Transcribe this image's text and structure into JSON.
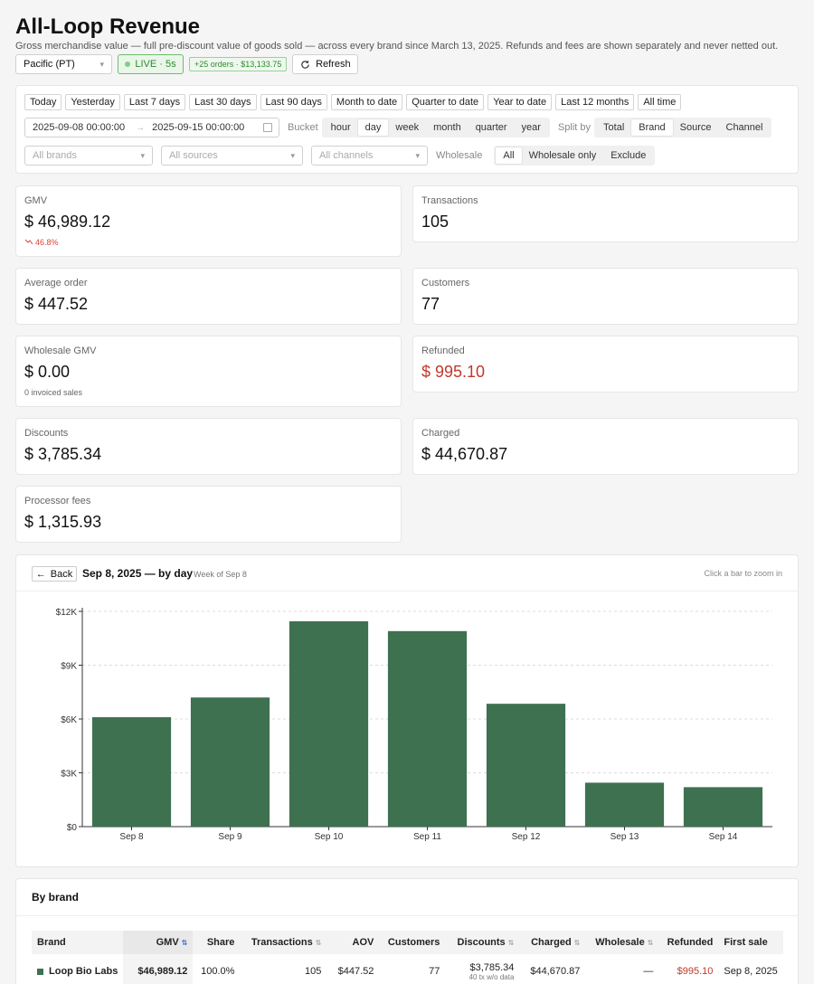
{
  "header": {
    "title": "All-Loop Revenue",
    "subtitle": "Gross merchandise value — full pre-discount value of goods sold — across every brand since March 13, 2025. Refunds and fees are shown separately and never netted out."
  },
  "topbar": {
    "timezone": "Pacific (PT)",
    "live_label": "LIVE · 5s",
    "new_orders": "+25 orders · $13,133.75",
    "refresh_label": "Refresh"
  },
  "filters": {
    "presets": [
      "Today",
      "Yesterday",
      "Last 7 days",
      "Last 30 days",
      "Last 90 days",
      "Month to date",
      "Quarter to date",
      "Year to date",
      "Last 12 months",
      "All time"
    ],
    "date_from": "2025-09-08 00:00:00",
    "date_to": "2025-09-15 00:00:00",
    "bucket_label": "Bucket",
    "buckets": [
      "hour",
      "day",
      "week",
      "month",
      "quarter",
      "year"
    ],
    "bucket_selected": "day",
    "split_label": "Split by",
    "splits": [
      "Total",
      "Brand",
      "Source",
      "Channel"
    ],
    "split_selected": "Brand",
    "brands_placeholder": "All brands",
    "sources_placeholder": "All sources",
    "channels_placeholder": "All channels",
    "wholesale_label": "Wholesale",
    "wholesale_options": [
      "All",
      "Wholesale only",
      "Exclude"
    ],
    "wholesale_selected": "All"
  },
  "kpis": {
    "gmv": {
      "label": "GMV",
      "value": "$ 46,989.12",
      "delta": "46.8%"
    },
    "transactions": {
      "label": "Transactions",
      "value": "105"
    },
    "avg_order": {
      "label": "Average order",
      "value": "$ 447.52"
    },
    "customers": {
      "label": "Customers",
      "value": "77"
    },
    "wholesale_gmv": {
      "label": "Wholesale GMV",
      "value": "$ 0.00",
      "sub": "0 invoiced sales"
    },
    "refunded": {
      "label": "Refunded",
      "value": "$ 995.10"
    },
    "discounts": {
      "label": "Discounts",
      "value": "$ 3,785.34"
    },
    "charged": {
      "label": "Charged",
      "value": "$ 44,670.87"
    },
    "processor_fees": {
      "label": "Processor fees",
      "value": "$ 1,315.93"
    }
  },
  "chart_header": {
    "back_label": "Back",
    "title": "Sep 8, 2025 — by day",
    "subtitle": "Week of Sep 8",
    "hint": "Click a bar to zoom in"
  },
  "chart_data": {
    "type": "bar",
    "categories": [
      "Sep 8",
      "Sep 9",
      "Sep 10",
      "Sep 11",
      "Sep 12",
      "Sep 13",
      "Sep 14"
    ],
    "values": [
      6100,
      7200,
      11450,
      10900,
      6850,
      2450,
      2200
    ],
    "ylim": [
      0,
      12000
    ],
    "yticks": [
      0,
      3000,
      6000,
      9000,
      12000
    ],
    "ytick_labels": [
      "$0",
      "$3K",
      "$6K",
      "$9K",
      "$12K"
    ],
    "bar_color": "#3e7150",
    "grid": true
  },
  "brand_table": {
    "title": "By brand",
    "columns": [
      "Brand",
      "GMV",
      "Share",
      "Transactions",
      "AOV",
      "Customers",
      "Discounts",
      "Charged",
      "Wholesale",
      "Refunded",
      "First sale"
    ],
    "rows": [
      {
        "brand": "Loop Bio Labs",
        "color": "#3e7150",
        "gmv": "$46,989.12",
        "share": "100.0%",
        "transactions": "105",
        "aov": "$447.52",
        "customers": "77",
        "discounts": "$3,785.34",
        "discounts_note": "40 tx w/o data",
        "charged": "$44,670.87",
        "wholesale": "—",
        "refunded": "$995.10",
        "first_sale": "Sep 8, 2025"
      }
    ]
  }
}
